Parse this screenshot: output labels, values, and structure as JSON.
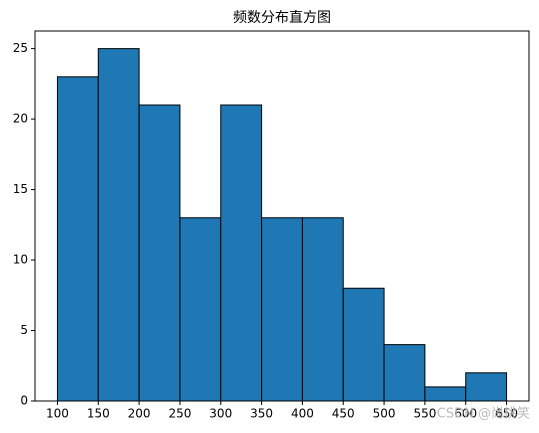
{
  "chart_data": {
    "type": "histogram",
    "title": "频数分布直方图",
    "bins": [
      100,
      150,
      200,
      250,
      300,
      350,
      400,
      450,
      500,
      550,
      600,
      650
    ],
    "counts": [
      23,
      25,
      21,
      13,
      21,
      13,
      13,
      8,
      4,
      1,
      2
    ],
    "color": "#1f77b4",
    "edgecolor": "#000000",
    "xlim": [
      72.5,
      677.5
    ],
    "xticks": [
      100,
      150,
      200,
      250,
      300,
      350,
      400,
      450,
      500,
      550,
      600,
      650
    ],
    "ylim": [
      0,
      26.25
    ],
    "yticks": [
      0,
      5,
      10,
      15,
      20,
      25
    ],
    "grid": false,
    "watermark": "CSDN @尚桃笑"
  }
}
